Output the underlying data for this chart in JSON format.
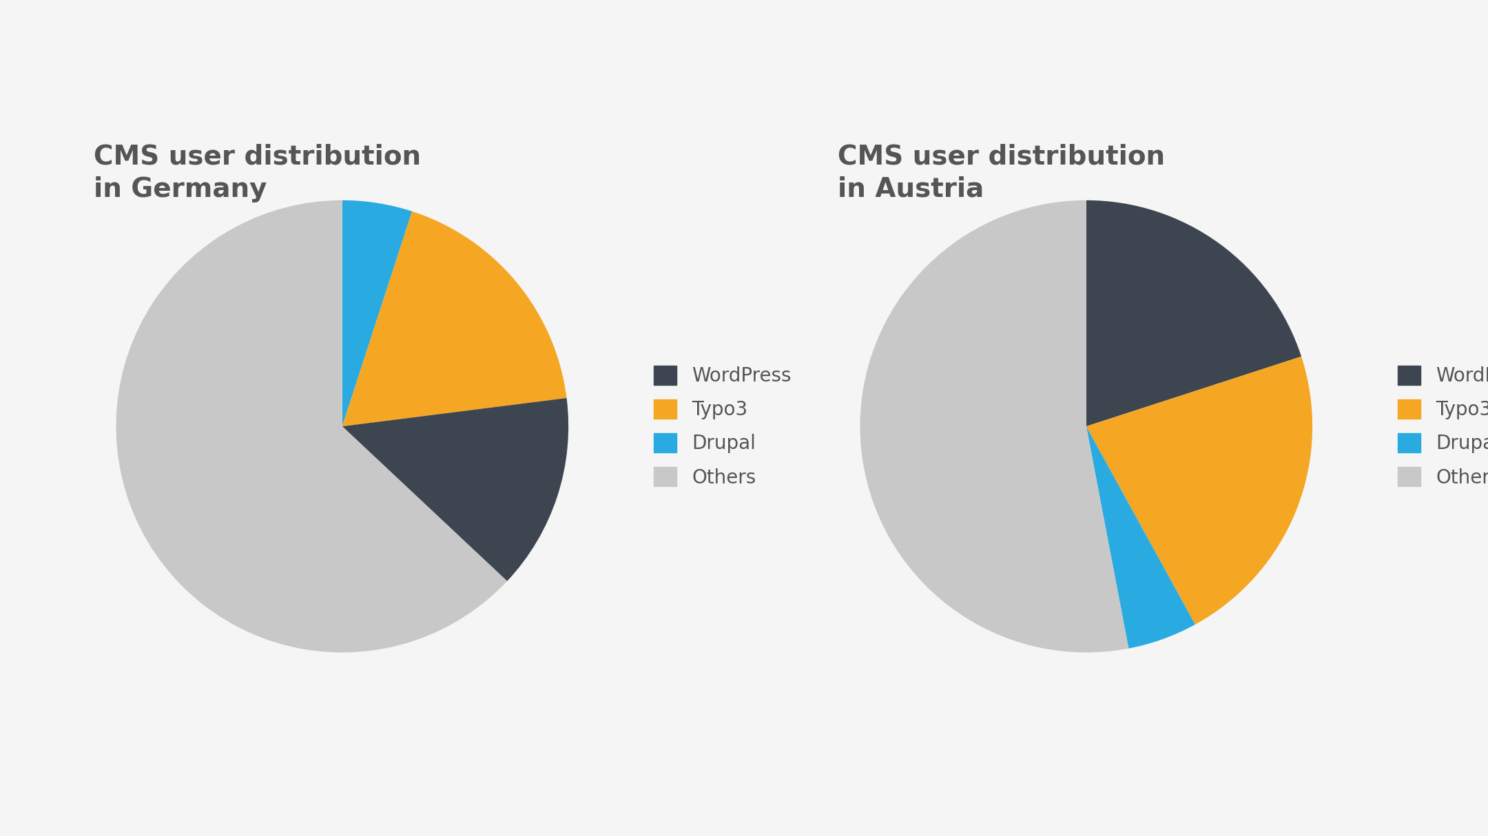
{
  "title1": "CMS user distribution\nin Germany",
  "title2": "CMS user distribution\nin Austria",
  "labels": [
    "WordPress",
    "Typo3",
    "Drupal",
    "Others"
  ],
  "colors_wp": "#3d4550",
  "colors_typo3": "#f5a623",
  "colors_drupal": "#29abe2",
  "colors_others": "#c8c8c8",
  "germany_values": [
    5,
    18,
    14,
    63
  ],
  "germany_colors": [
    "#29abe2",
    "#f5a623",
    "#3d4550",
    "#c8c8c8"
  ],
  "austria_values": [
    20,
    22,
    5,
    53
  ],
  "austria_colors": [
    "#3d4550",
    "#f5a623",
    "#29abe2",
    "#c8c8c8"
  ],
  "germany_startangle": 90,
  "austria_startangle": 90,
  "background_color": "#f5f5f5",
  "title_color": "#555555",
  "title_fontsize": 28,
  "legend_fontsize": 20
}
